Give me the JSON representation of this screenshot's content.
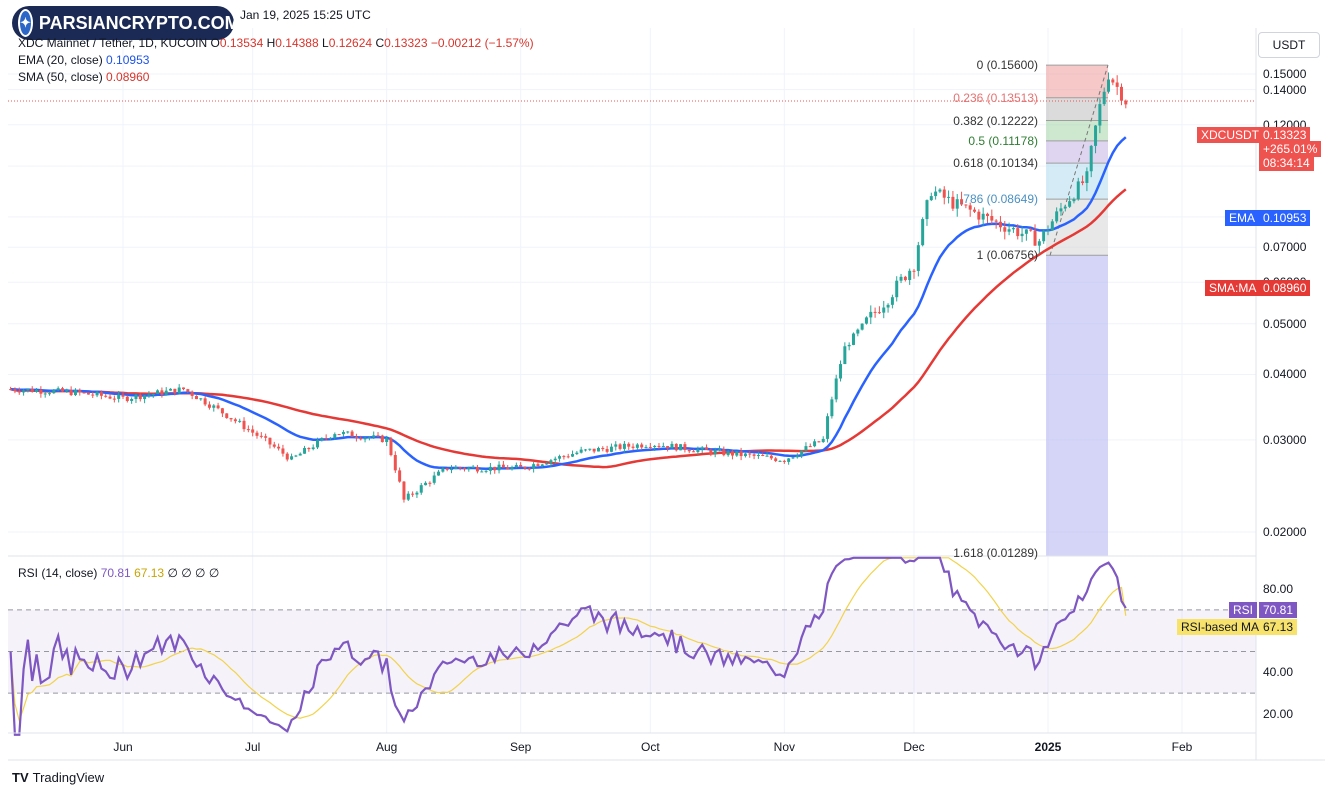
{
  "header": {
    "watermark": "PARSIANCRYPTO.COM",
    "date_text": "Jan 19, 2025 15:25 UTC",
    "symbol_line": "XDC Mainnet / Tether, 1D, KUCOIN",
    "ohlc": {
      "o_label": "O",
      "o": "0.13534",
      "h_label": "H",
      "h": "0.14388",
      "l_label": "L",
      "l": "0.12624",
      "c_label": "C",
      "c": "0.13323",
      "change": "−0.00212 (−1.57%)"
    },
    "ema_label": "EMA (20, close)",
    "ema_value": "0.10953",
    "sma_label": "SMA (50, close)",
    "sma_value": "0.08960",
    "rsi_label": "RSI (14, close)",
    "rsi_value": "70.81",
    "rsi_ma_value": "67.13",
    "rsi_extra": "∅ ∅ ∅ ∅"
  },
  "currency_button": "USDT",
  "footer_brand": "TradingView",
  "price_tags": {
    "symbol": "XDCUSDT",
    "price": "0.13323",
    "pct": "+265.01%",
    "countdown": "08:34:14",
    "ema_name": "EMA",
    "ema_val": "0.10953",
    "sma_name": "SMA:MA",
    "sma_val": "0.08960",
    "rsi_name": "RSI",
    "rsi_val": "70.81",
    "rsima_name": "RSI-based MA",
    "rsima_val": "67.13"
  },
  "colors": {
    "up": "#26a69a",
    "down": "#ef5350",
    "ema": "#2962ff",
    "sma": "#e53935",
    "rsi": "#7e57c2",
    "rsi_ma": "#f2d34a"
  },
  "chart_data": [
    {
      "type": "candlestick",
      "title": "XDC Mainnet / Tether, 1D, KUCOIN",
      "y_axis_ticks": [
        "0.15000",
        "0.14000",
        "0.12000",
        "0.10000",
        "0.08000",
        "0.07000",
        "0.06000",
        "0.05000",
        "0.04000",
        "0.03000",
        "0.02000"
      ],
      "x_axis_ticks": [
        "Jun",
        "Jul",
        "Aug",
        "Sep",
        "Oct",
        "Nov",
        "Dec",
        "2025",
        "Feb"
      ],
      "x_range": [
        "2024-05-06",
        "2025-02-25"
      ],
      "price_series_approx": [
        {
          "date": "2024-05-06",
          "close": 0.0375
        },
        {
          "date": "2024-05-20",
          "close": 0.037
        },
        {
          "date": "2024-06-01",
          "close": 0.036
        },
        {
          "date": "2024-06-15",
          "close": 0.0375
        },
        {
          "date": "2024-07-01",
          "close": 0.031
        },
        {
          "date": "2024-07-10",
          "close": 0.0275
        },
        {
          "date": "2024-07-20",
          "close": 0.031
        },
        {
          "date": "2024-08-01",
          "close": 0.03
        },
        {
          "date": "2024-08-05",
          "close": 0.023
        },
        {
          "date": "2024-08-15",
          "close": 0.0265
        },
        {
          "date": "2024-09-01",
          "close": 0.0265
        },
        {
          "date": "2024-09-15",
          "close": 0.0285
        },
        {
          "date": "2024-10-01",
          "close": 0.0295
        },
        {
          "date": "2024-10-15",
          "close": 0.0285
        },
        {
          "date": "2024-11-01",
          "close": 0.0275
        },
        {
          "date": "2024-11-10",
          "close": 0.03
        },
        {
          "date": "2024-11-15",
          "close": 0.045
        },
        {
          "date": "2024-11-25",
          "close": 0.056
        },
        {
          "date": "2024-12-01",
          "close": 0.065
        },
        {
          "date": "2024-12-05",
          "close": 0.09
        },
        {
          "date": "2024-12-10",
          "close": 0.085
        },
        {
          "date": "2024-12-20",
          "close": 0.078
        },
        {
          "date": "2024-12-30",
          "close": 0.072
        },
        {
          "date": "2025-01-05",
          "close": 0.085
        },
        {
          "date": "2025-01-10",
          "close": 0.095
        },
        {
          "date": "2025-01-13",
          "close": 0.13
        },
        {
          "date": "2025-01-15",
          "close": 0.15
        },
        {
          "date": "2025-01-19",
          "close": 0.13323
        }
      ],
      "ema20": 0.10953,
      "sma50": 0.0896,
      "fibonacci": [
        {
          "level": "0",
          "price": "0.15600",
          "label": "0 (0.15600)",
          "color": "#ef9a9a"
        },
        {
          "level": "0.236",
          "price": "0.13513",
          "label": "0.236 (0.13513)",
          "color": "#bdbdbd"
        },
        {
          "level": "0.382",
          "price": "0.12222",
          "label": "0.382 (0.12222)",
          "color": "#a5d6a7"
        },
        {
          "level": "0.5",
          "price": "0.11178",
          "label": "0.5 (0.11178)",
          "color": "#c5b3e6"
        },
        {
          "level": "0.618",
          "price": "0.10134",
          "label": "0.618 (0.10134)",
          "color": "#b3dcef"
        },
        {
          "level": "0.786",
          "price": "0.08649",
          "label": ".786 (0.08649)",
          "color": "#d6d6d6"
        },
        {
          "level": "1",
          "price": "0.06756",
          "label": "1 (0.06756)",
          "color": "#b3b3f0"
        },
        {
          "level": "1.618",
          "price": "0.01289",
          "label": "1.618 (0.01289)",
          "color": "#b3b3f0"
        }
      ]
    },
    {
      "type": "line",
      "title": "RSI (14, close)",
      "y_axis_ticks": [
        "80.00",
        "40.00",
        "20.00"
      ],
      "bands": [
        30,
        50,
        70
      ],
      "series": [
        {
          "name": "RSI",
          "last": 70.81
        },
        {
          "name": "RSI-based MA",
          "last": 67.13
        }
      ]
    }
  ]
}
